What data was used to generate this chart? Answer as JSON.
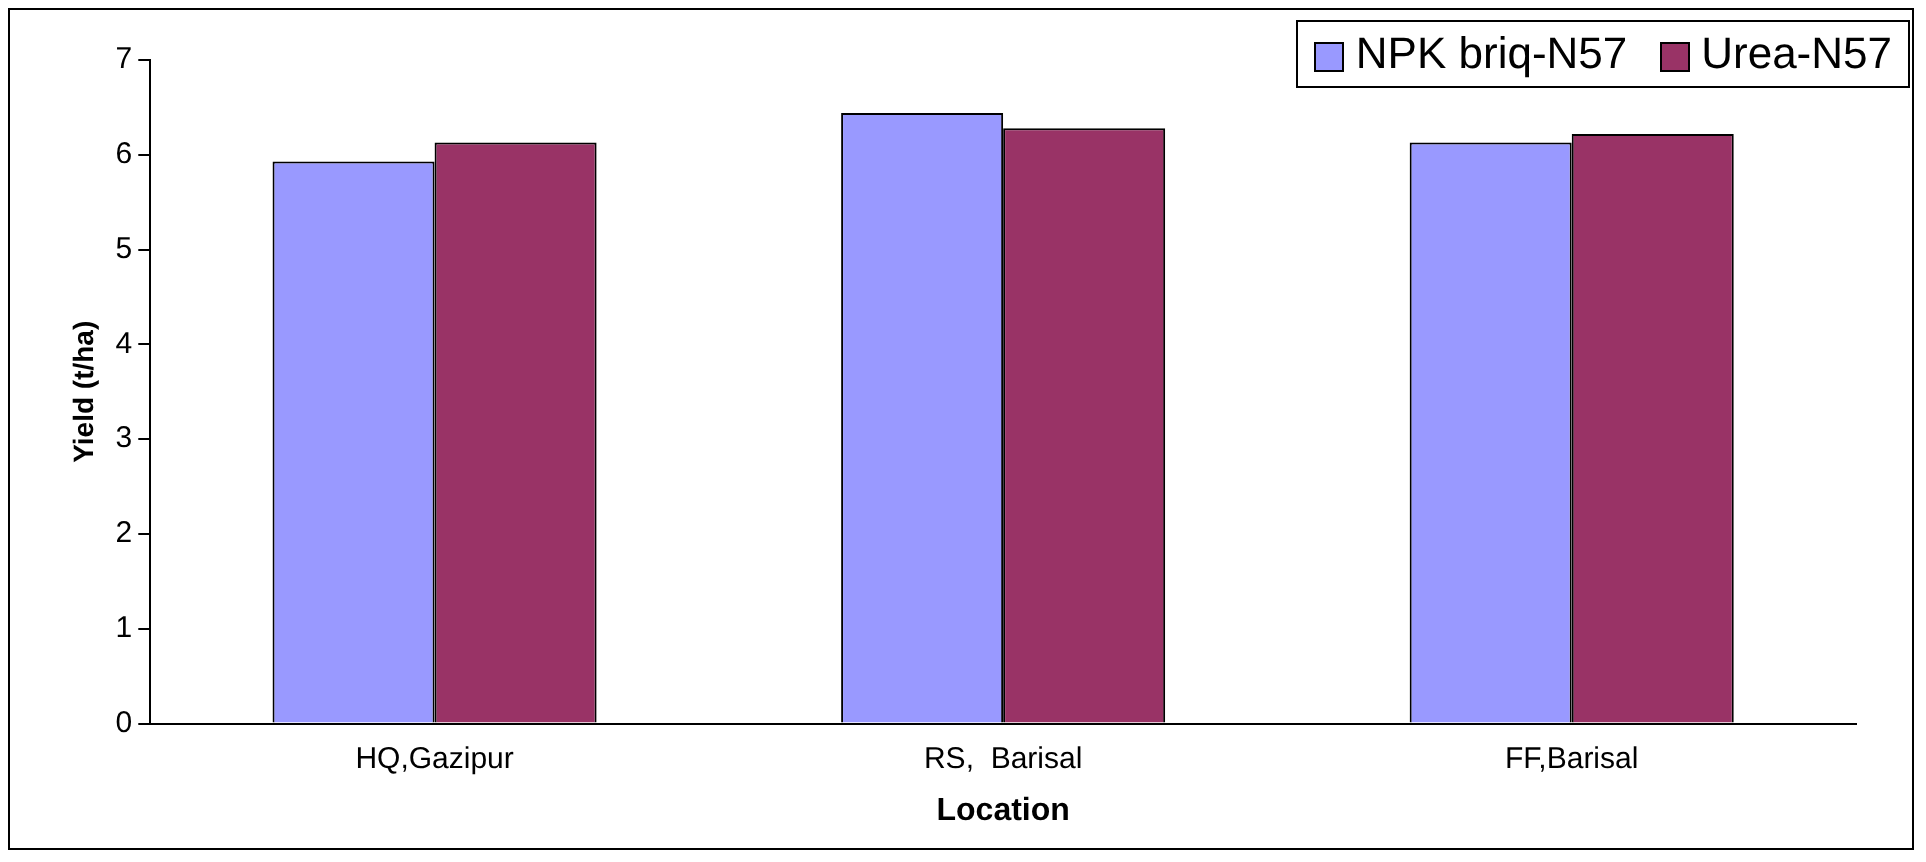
{
  "chart_data": {
    "type": "bar",
    "xlabel": "Location",
    "ylabel": "Yield (t/ha)",
    "categories": [
      "HQ,Gazipur",
      "RS,  Barisal",
      "FF,Barisal"
    ],
    "series": [
      {
        "name": "NPK briq-N57",
        "color": "#9999ff",
        "values": [
          5.93,
          6.44,
          6.13
        ]
      },
      {
        "name": "Urea-N57",
        "color": "#993366",
        "values": [
          6.13,
          6.28,
          6.22
        ]
      }
    ],
    "ylim": [
      0,
      7
    ],
    "yticks": [
      0,
      1,
      2,
      3,
      4,
      5,
      6,
      7
    ],
    "grid": false,
    "legend": "top right"
  }
}
